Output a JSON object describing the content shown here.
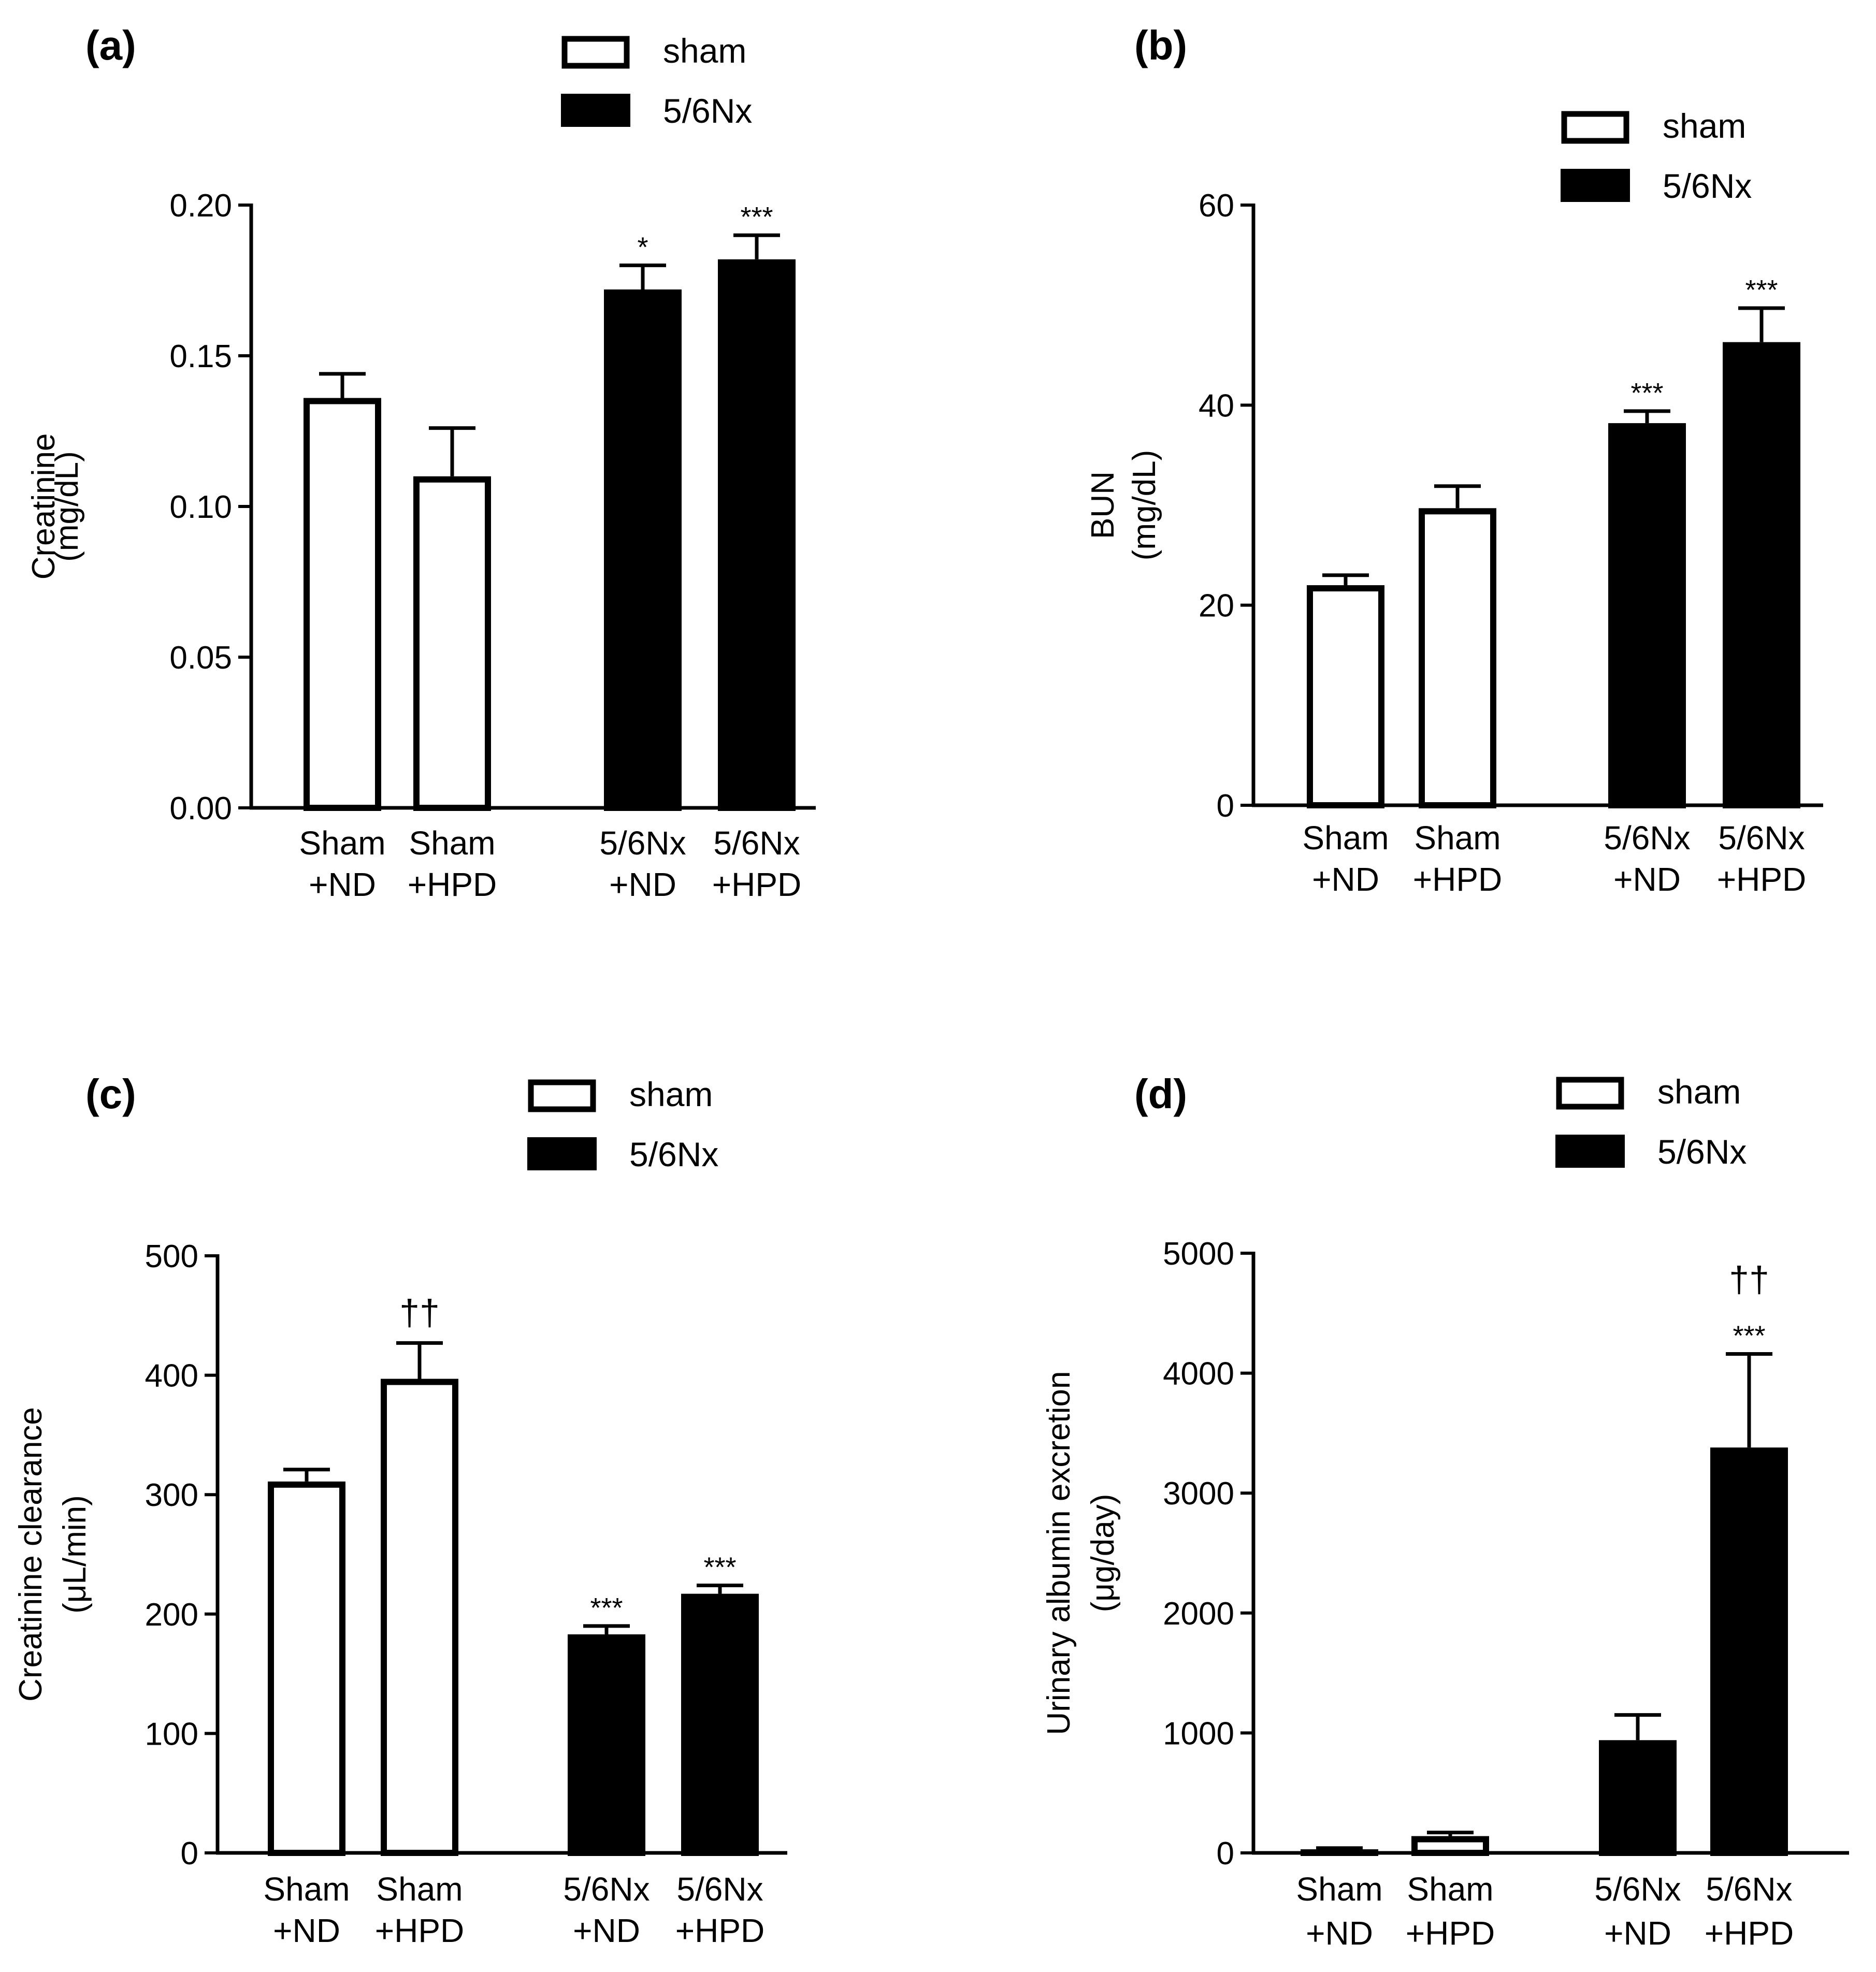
{
  "legend": {
    "items": [
      "sham",
      "5/6Nx"
    ]
  },
  "chart_data": [
    {
      "panel_label": "(a)",
      "type": "bar",
      "ylabel": [
        "Creatinine",
        "(mg/dL)"
      ],
      "ylim": [
        0,
        0.2
      ],
      "yticks": [
        "0.00",
        "0.05",
        "0.10",
        "0.15",
        "0.20"
      ],
      "ytick_values": [
        0,
        0.05,
        0.1,
        0.15,
        0.2
      ],
      "categories": [
        [
          "Sham",
          "+ND"
        ],
        [
          "Sham",
          "+HPD"
        ],
        [
          "5/6Nx",
          "+ND"
        ],
        [
          "5/6Nx",
          "+HPD"
        ]
      ],
      "groups": [
        "sham",
        "sham",
        "5/6Nx",
        "5/6Nx"
      ],
      "values": [
        0.136,
        0.11,
        0.172,
        0.182
      ],
      "errors": [
        0.008,
        0.016,
        0.008,
        0.008
      ],
      "annotations": [
        [],
        [],
        [
          "*"
        ],
        [
          "***"
        ]
      ],
      "legend_position": "top-center"
    },
    {
      "panel_label": "(b)",
      "type": "bar",
      "ylabel": [
        "BUN",
        "(mg/dL)"
      ],
      "ylim": [
        0,
        60
      ],
      "yticks": [
        "0",
        "20",
        "40",
        "60"
      ],
      "ytick_values": [
        0,
        20,
        40,
        60
      ],
      "categories": [
        [
          "Sham",
          "+ND"
        ],
        [
          "Sham",
          "+HPD"
        ],
        [
          "5/6Nx",
          "+ND"
        ],
        [
          "5/6Nx",
          "+HPD"
        ]
      ],
      "groups": [
        "sham",
        "sham",
        "5/6Nx",
        "5/6Nx"
      ],
      "values": [
        22.0,
        29.7,
        38.2,
        46.3
      ],
      "errors": [
        1.0,
        2.2,
        1.2,
        3.4
      ],
      "annotations": [
        [],
        [],
        [
          "***"
        ],
        [
          "***"
        ]
      ],
      "legend_position": "top-right"
    },
    {
      "panel_label": "(c)",
      "type": "bar",
      "ylabel": [
        "Creatinine clearance",
        "(μL/min)"
      ],
      "ylim": [
        0,
        500
      ],
      "yticks": [
        "0",
        "100",
        "200",
        "300",
        "400",
        "500"
      ],
      "ytick_values": [
        0,
        100,
        200,
        300,
        400,
        500
      ],
      "categories": [
        [
          "Sham",
          "+ND"
        ],
        [
          "Sham",
          "+HPD"
        ],
        [
          "5/6Nx",
          "+ND"
        ],
        [
          "5/6Nx",
          "+HPD"
        ]
      ],
      "groups": [
        "sham",
        "sham",
        "5/6Nx",
        "5/6Nx"
      ],
      "values": [
        311,
        397,
        183,
        217
      ],
      "errors": [
        10,
        30,
        7,
        7
      ],
      "annotations": [
        [],
        [
          "††"
        ],
        [
          "***"
        ],
        [
          "***"
        ]
      ],
      "legend_position": "top-center"
    },
    {
      "panel_label": "(d)",
      "type": "bar",
      "ylabel": [
        "Urinary albumin excretion",
        "(μg/day)"
      ],
      "ylim": [
        0,
        5000
      ],
      "yticks": [
        "0",
        "1000",
        "2000",
        "3000",
        "4000",
        "5000"
      ],
      "ytick_values": [
        0,
        1000,
        2000,
        3000,
        4000,
        5000
      ],
      "categories": [
        [
          "Sham",
          "+ND"
        ],
        [
          "Sham",
          "+HPD"
        ],
        [
          "5/6Nx",
          "+ND"
        ],
        [
          "5/6Nx",
          "+HPD"
        ]
      ],
      "groups": [
        "sham",
        "sham",
        "5/6Nx",
        "5/6Nx"
      ],
      "values": [
        30,
        140,
        940,
        3380
      ],
      "errors": [
        10,
        30,
        210,
        780
      ],
      "annotations": [
        [],
        [],
        [],
        [
          "***",
          "††"
        ]
      ],
      "legend_position": "top-right"
    }
  ]
}
